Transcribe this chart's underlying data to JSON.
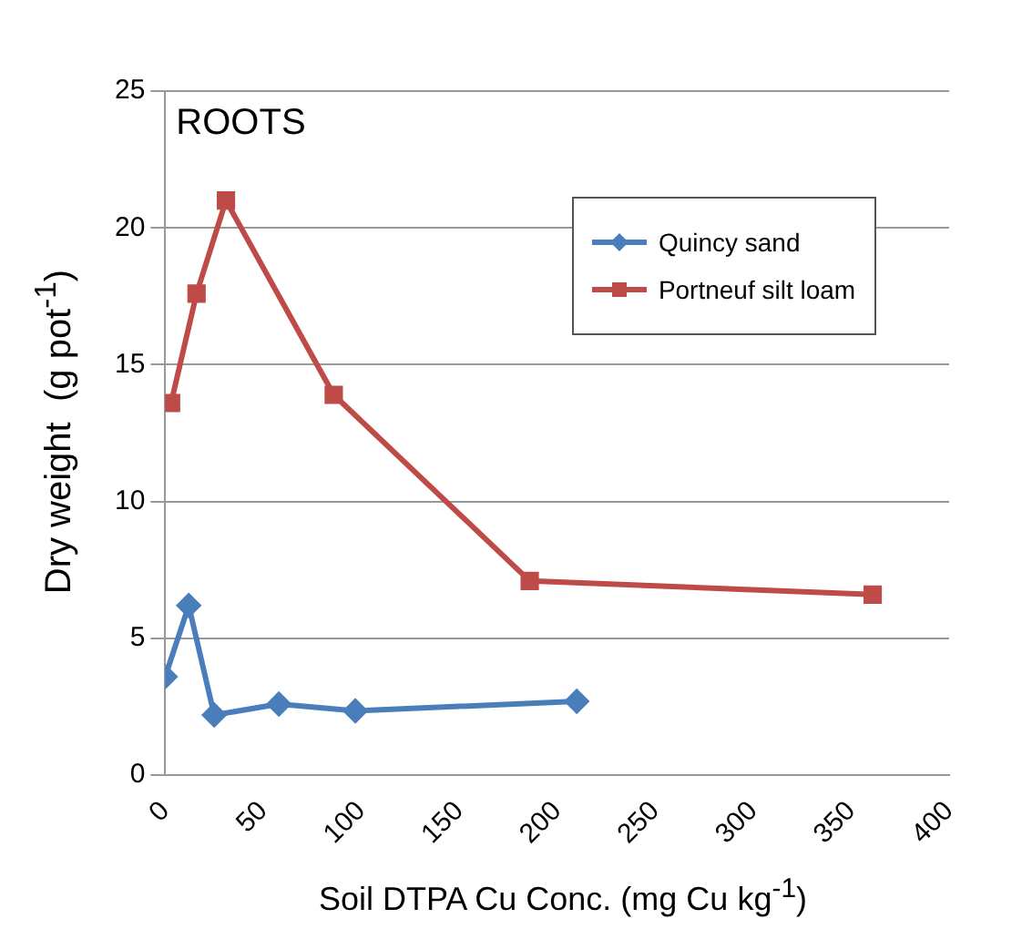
{
  "chart_data": {
    "type": "line",
    "xlabel": "Soil DTPA Cu Conc. (mg Cu kg$^{-1}$)",
    "ylabel": "Dry weight  (g pot$^{-1}$)",
    "annotations": [
      "ROOTS"
    ],
    "xlim": [
      0,
      400
    ],
    "xticks": [
      0,
      50,
      100,
      150,
      200,
      250,
      300,
      350,
      400
    ],
    "ylim": [
      0,
      25
    ],
    "yticks": [
      0,
      5,
      10,
      15,
      20,
      25
    ],
    "grid": "y",
    "legend": "right",
    "series": [
      {
        "name": "Quincy sand",
        "color": "#4a7ebb",
        "marker": "diamond",
        "x": [
          0,
          12,
          25,
          58,
          97,
          210
        ],
        "values": [
          3.6,
          6.2,
          2.2,
          2.6,
          2.35,
          2.7
        ]
      },
      {
        "name": "Portneuf silt loam",
        "color": "#be4b48",
        "marker": "square",
        "x": [
          3,
          16,
          31,
          86,
          186,
          361
        ],
        "values": [
          13.6,
          17.6,
          21.0,
          13.9,
          7.1,
          6.6
        ]
      }
    ]
  }
}
